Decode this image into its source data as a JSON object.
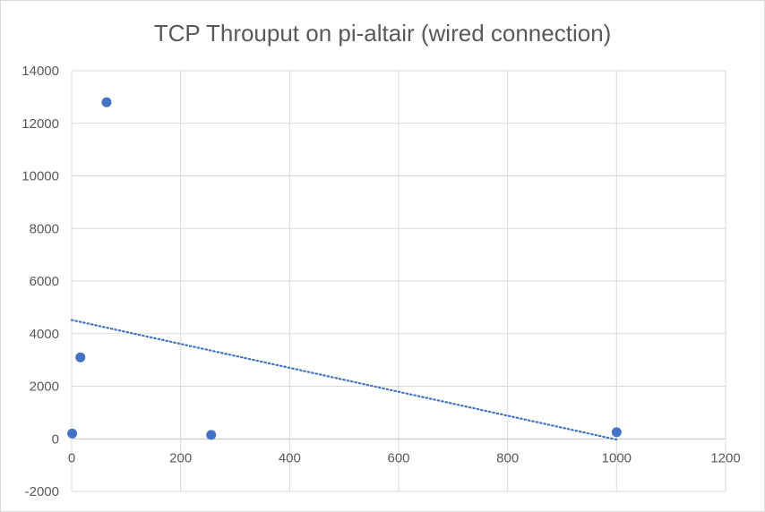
{
  "chart_data": {
    "type": "scatter",
    "title": "TCP Throuput on pi-altair (wired connection)",
    "xlabel": "",
    "ylabel": "",
    "xlim": [
      0,
      1200
    ],
    "ylim": [
      -2000,
      14000
    ],
    "x_ticks": [
      0,
      200,
      400,
      600,
      800,
      1000,
      1200
    ],
    "y_ticks": [
      -2000,
      0,
      2000,
      4000,
      6000,
      8000,
      10000,
      12000,
      14000
    ],
    "grid": true,
    "legend": "none",
    "point_color": "#4472c4",
    "trendline": {
      "type": "linear",
      "style": "dotted",
      "color": "#4472c4",
      "from": [
        0,
        4520
      ],
      "to": [
        1000,
        -30
      ]
    },
    "series": [
      {
        "points": [
          {
            "x": 1,
            "y": 200
          },
          {
            "x": 16,
            "y": 3100
          },
          {
            "x": 64,
            "y": 12800
          },
          {
            "x": 256,
            "y": 150
          },
          {
            "x": 1000,
            "y": 250
          }
        ]
      }
    ]
  }
}
